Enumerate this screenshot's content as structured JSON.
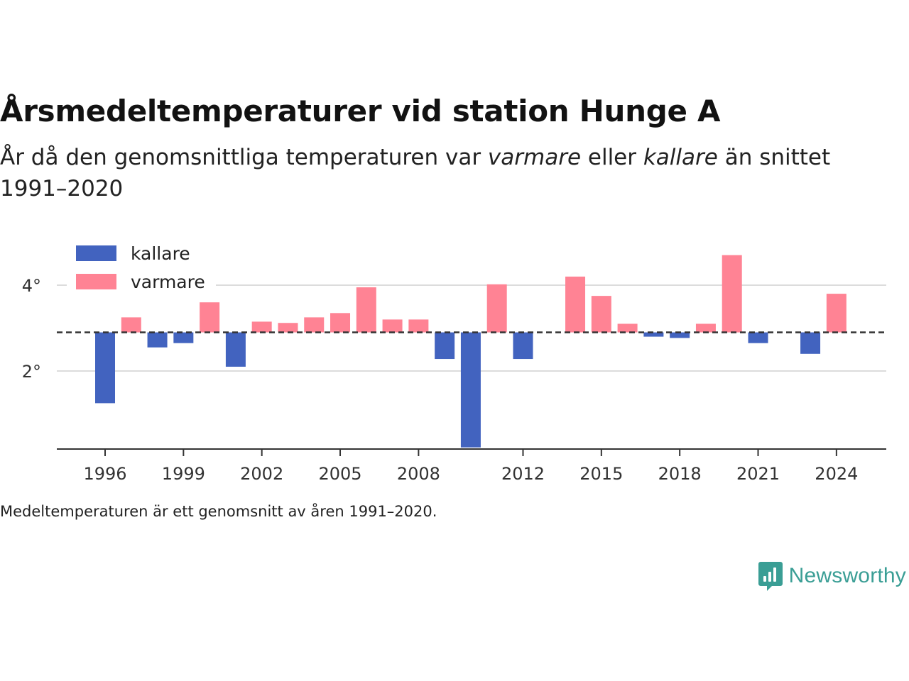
{
  "title": "Årsmedeltemperaturer vid station Hunge A",
  "subtitle": {
    "part1": "År då den genomsnittliga temperaturen var ",
    "warmer_word": "varmare",
    "part2": " eller ",
    "colder_word": "kallare",
    "part3": " än snittet 1991–2020"
  },
  "footnote": "Medeltemperaturen är ett genomsnitt av åren 1991–2020.",
  "brand": {
    "name": "Newsworthy",
    "icon": "bar-chart-speech-bubble-icon",
    "color": "#3a9e95"
  },
  "colors": {
    "colder": "#4263bf",
    "warmer": "#ff8394",
    "baseline": "#333333",
    "grid": "#dcdcdc"
  },
  "chart_data": {
    "type": "bar",
    "baseline": 2.9,
    "baseline_style": "dashed",
    "legend": [
      {
        "key": "colder",
        "label": "kallare"
      },
      {
        "key": "warmer",
        "label": "varmare"
      }
    ],
    "legend_position": "top-left",
    "x": [
      1996,
      1997,
      1998,
      1999,
      2000,
      2001,
      2002,
      2003,
      2004,
      2005,
      2006,
      2007,
      2008,
      2009,
      2010,
      2011,
      2012,
      2013,
      2014,
      2015,
      2016,
      2017,
      2018,
      2019,
      2020,
      2021,
      2022,
      2023,
      2024
    ],
    "values": [
      1.25,
      3.25,
      2.55,
      2.65,
      3.6,
      2.1,
      3.15,
      3.12,
      3.25,
      3.35,
      3.95,
      3.2,
      3.2,
      2.28,
      0.22,
      4.02,
      2.28,
      null,
      4.2,
      3.75,
      3.1,
      2.8,
      2.77,
      3.1,
      4.7,
      2.65,
      null,
      2.4,
      3.8
    ],
    "x_ticks": [
      "1996",
      "1999",
      "2002",
      "2005",
      "2008",
      "2012",
      "2015",
      "2018",
      "2021",
      "2024"
    ],
    "y_ticks": [
      {
        "value": 4,
        "label": "4°"
      },
      {
        "value": 2,
        "label": "2°"
      }
    ],
    "ylim": [
      0.2,
      5.2
    ],
    "grid": true
  }
}
